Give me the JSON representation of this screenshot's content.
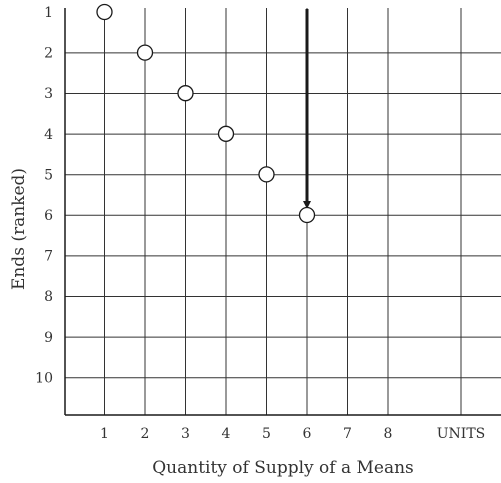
{
  "chart_data": {
    "type": "scatter",
    "xlabel": "Quantity of Supply of a Means",
    "ylabel": "Ends (ranked)",
    "x_ticks": [
      "1",
      "2",
      "3",
      "4",
      "5",
      "6",
      "7",
      "8",
      "UNITS"
    ],
    "y_ticks": [
      "1",
      "2",
      "3",
      "4",
      "5",
      "6",
      "7",
      "8",
      "9",
      "10"
    ],
    "xlim": [
      0,
      10
    ],
    "ylim": [
      1,
      11
    ],
    "y_inverted": true,
    "grid": true,
    "points": [
      {
        "x": 1,
        "y": 1
      },
      {
        "x": 2,
        "y": 2
      },
      {
        "x": 3,
        "y": 3
      },
      {
        "x": 4,
        "y": 4
      },
      {
        "x": 5,
        "y": 5
      },
      {
        "x": 6,
        "y": 6
      }
    ],
    "arrow": {
      "x": 6,
      "y_from": 1,
      "y_to": 6
    },
    "colors": {
      "ink": "#1a1a1a",
      "grid": "#333333",
      "text": "#333333"
    }
  }
}
